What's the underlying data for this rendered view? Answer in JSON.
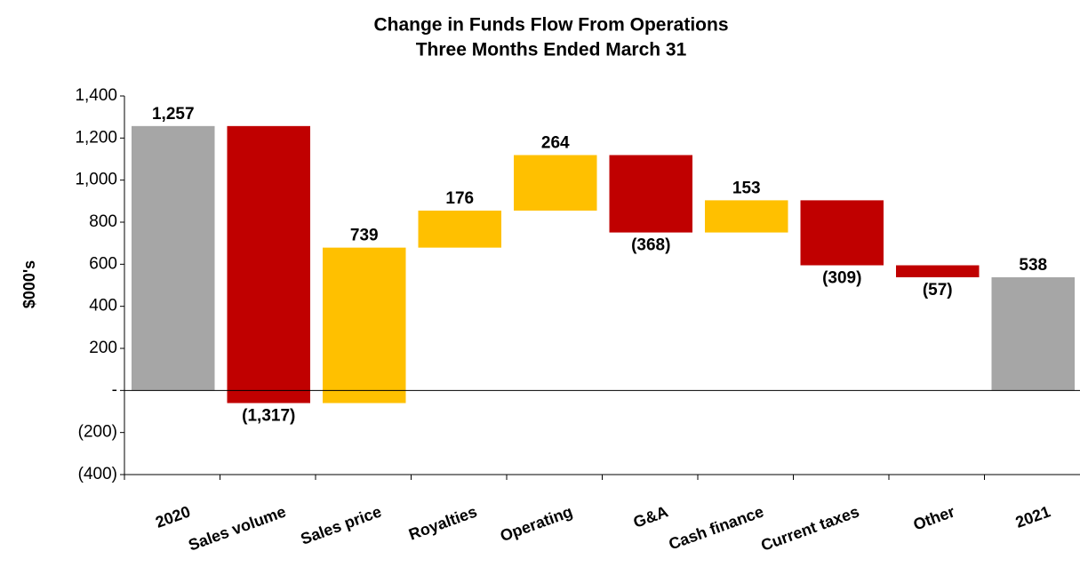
{
  "chart_data": {
    "type": "waterfall",
    "title": "Change in Funds Flow From Operations",
    "subtitle": "Three Months Ended March 31",
    "y_label": "$000's",
    "categories": [
      "2020",
      "Sales volume",
      "Sales price",
      "Royalties",
      "Operating",
      "G&A",
      "Cash finance",
      "Current taxes",
      "Other",
      "2021"
    ],
    "values": [
      1257,
      -1317,
      739,
      176,
      264,
      -368,
      153,
      -309,
      -57,
      538
    ],
    "value_labels": [
      "1,257",
      "(1,317)",
      "739",
      "176",
      "264",
      "(368)",
      "153",
      "(309)",
      "(57)",
      "538"
    ],
    "measure": [
      "absolute",
      "relative",
      "relative",
      "relative",
      "relative",
      "relative",
      "relative",
      "relative",
      "relative",
      "total"
    ],
    "colors": [
      "#a6a6a6",
      "#c00000",
      "#ffc000",
      "#ffc000",
      "#ffc000",
      "#c00000",
      "#ffc000",
      "#c00000",
      "#c00000",
      "#a6a6a6"
    ],
    "ylim": [
      -400,
      1400
    ],
    "yticks": [
      {
        "value": -400,
        "label": "(400)"
      },
      {
        "value": -200,
        "label": "(200)"
      },
      {
        "value": 0,
        "label": "-"
      },
      200,
      400,
      600,
      800,
      {
        "value": 1000,
        "label": "1,000"
      },
      {
        "value": 1200,
        "label": "1,200"
      },
      {
        "value": 1400,
        "label": "1,400"
      }
    ]
  }
}
